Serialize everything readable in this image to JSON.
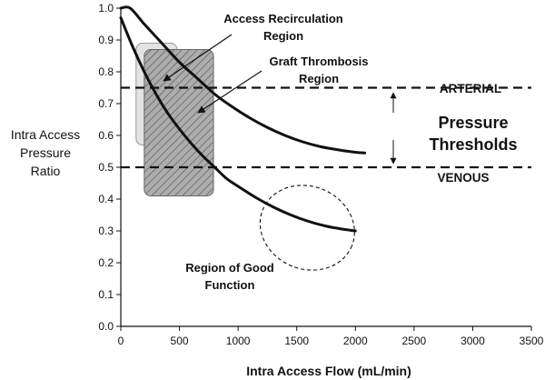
{
  "chart_data": {
    "type": "line",
    "xlabel": "Intra Access Flow (mL/min)",
    "ylabel_lines": [
      "Intra Access",
      "Pressure",
      "Ratio"
    ],
    "xlim": [
      0,
      3500
    ],
    "ylim": [
      0,
      1.0
    ],
    "x_ticks": [
      0,
      500,
      1000,
      1500,
      2000,
      2500,
      3000,
      3500
    ],
    "y_ticks": [
      "0.0",
      "0.1",
      "0.2",
      "0.3",
      "0.4",
      "0.5",
      "0.6",
      "0.7",
      "0.8",
      "0.9",
      "1.0"
    ],
    "series": [
      {
        "key": "arterial_curve",
        "x": [
          0,
          80,
          200,
          350,
          500,
          650,
          800,
          950,
          1100,
          1250,
          1400,
          1550,
          1700,
          1850,
          2000,
          2080
        ],
        "y": [
          1.0,
          1.0,
          0.95,
          0.89,
          0.83,
          0.78,
          0.73,
          0.69,
          0.655,
          0.625,
          0.6,
          0.58,
          0.565,
          0.555,
          0.547,
          0.545
        ]
      },
      {
        "key": "venous_curve",
        "x": [
          0,
          100,
          200,
          300,
          400,
          500,
          600,
          700,
          800,
          900,
          1000,
          1150,
          1300,
          1450,
          1600,
          1750,
          1900,
          2000
        ],
        "y": [
          0.97,
          0.88,
          0.8,
          0.73,
          0.67,
          0.62,
          0.575,
          0.535,
          0.5,
          0.465,
          0.44,
          0.405,
          0.375,
          0.35,
          0.33,
          0.315,
          0.305,
          0.3
        ]
      }
    ],
    "thresholds": [
      {
        "label": "ARTERIAL",
        "y": 0.75
      },
      {
        "label": "VENOUS",
        "y": 0.5
      }
    ],
    "thresholds_title": [
      "Pressure",
      "Thresholds"
    ],
    "regions": [
      {
        "label_lines": [
          "Access Recirculation",
          "Region"
        ],
        "fill": "#e3e3e3",
        "x_range": [
          130,
          480
        ],
        "y_range": [
          0.57,
          0.89
        ]
      },
      {
        "label_lines": [
          "Graft Thrombosis",
          "Region"
        ],
        "fill": "#a9a9a9",
        "hatched": true,
        "x_range": [
          200,
          790
        ],
        "y_range": [
          0.41,
          0.87
        ]
      },
      {
        "label_lines": [
          "Region of Good",
          "Function"
        ],
        "ellipse": true,
        "center": [
          1590,
          0.31
        ],
        "half_width": [
          410,
          0.13
        ]
      }
    ]
  }
}
